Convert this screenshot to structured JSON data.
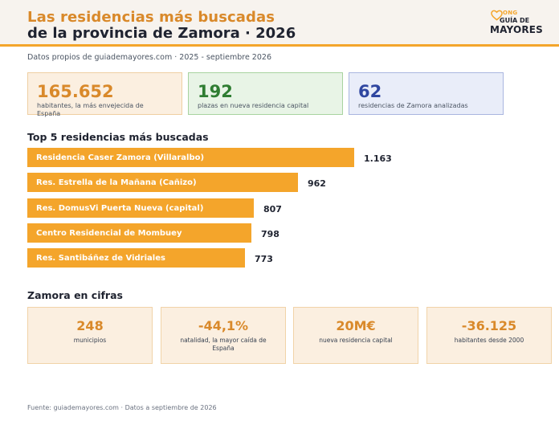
{
  "header": {
    "title_line1": "Las residencias más buscadas",
    "title_line2": "de la provincia de Zamora · 2026"
  },
  "logo": {
    "ong": "ONG",
    "guia": "GUÍA DE",
    "mayores": "MAYORES"
  },
  "subtitle": "Datos propios de guiademayores.com · 2025 - septiembre 2026",
  "kpis": [
    {
      "value": "165.652",
      "label": "habitantes, la más envejecida de España"
    },
    {
      "value": "192",
      "label": "plazas en nueva residencia capital"
    },
    {
      "value": "62",
      "label": "residencias de Zamora analizadas"
    }
  ],
  "chart_data": {
    "type": "bar",
    "title": "Top 5 residencias más buscadas",
    "orientation": "horizontal",
    "categories": [
      "Residencia Caser Zamora (Villaralbo)",
      "Res. Estrella de la Mañana (Cañizo)",
      "Res. DomusVi Puerta Nueva (capital)",
      "Centro Residencial de Mombuey",
      "Res. Santibáñez de Vidriales"
    ],
    "values": [
      1163,
      962,
      807,
      798,
      773
    ],
    "value_labels": [
      "1.163",
      "962",
      "807",
      "798",
      "773"
    ],
    "bar_color": "#f4a52b"
  },
  "cifras_title": "Zamora en cifras",
  "cifras": [
    {
      "value": "248",
      "label": "municipios"
    },
    {
      "value": "-44,1%",
      "label": "natalidad, la mayor caída de España"
    },
    {
      "value": "20M€",
      "label": "nueva residencia capital"
    },
    {
      "value": "-36.125",
      "label": "habitantes desde 2000"
    }
  ],
  "footer": "Fuente: guiademayores.com · Datos a septiembre de 2026"
}
